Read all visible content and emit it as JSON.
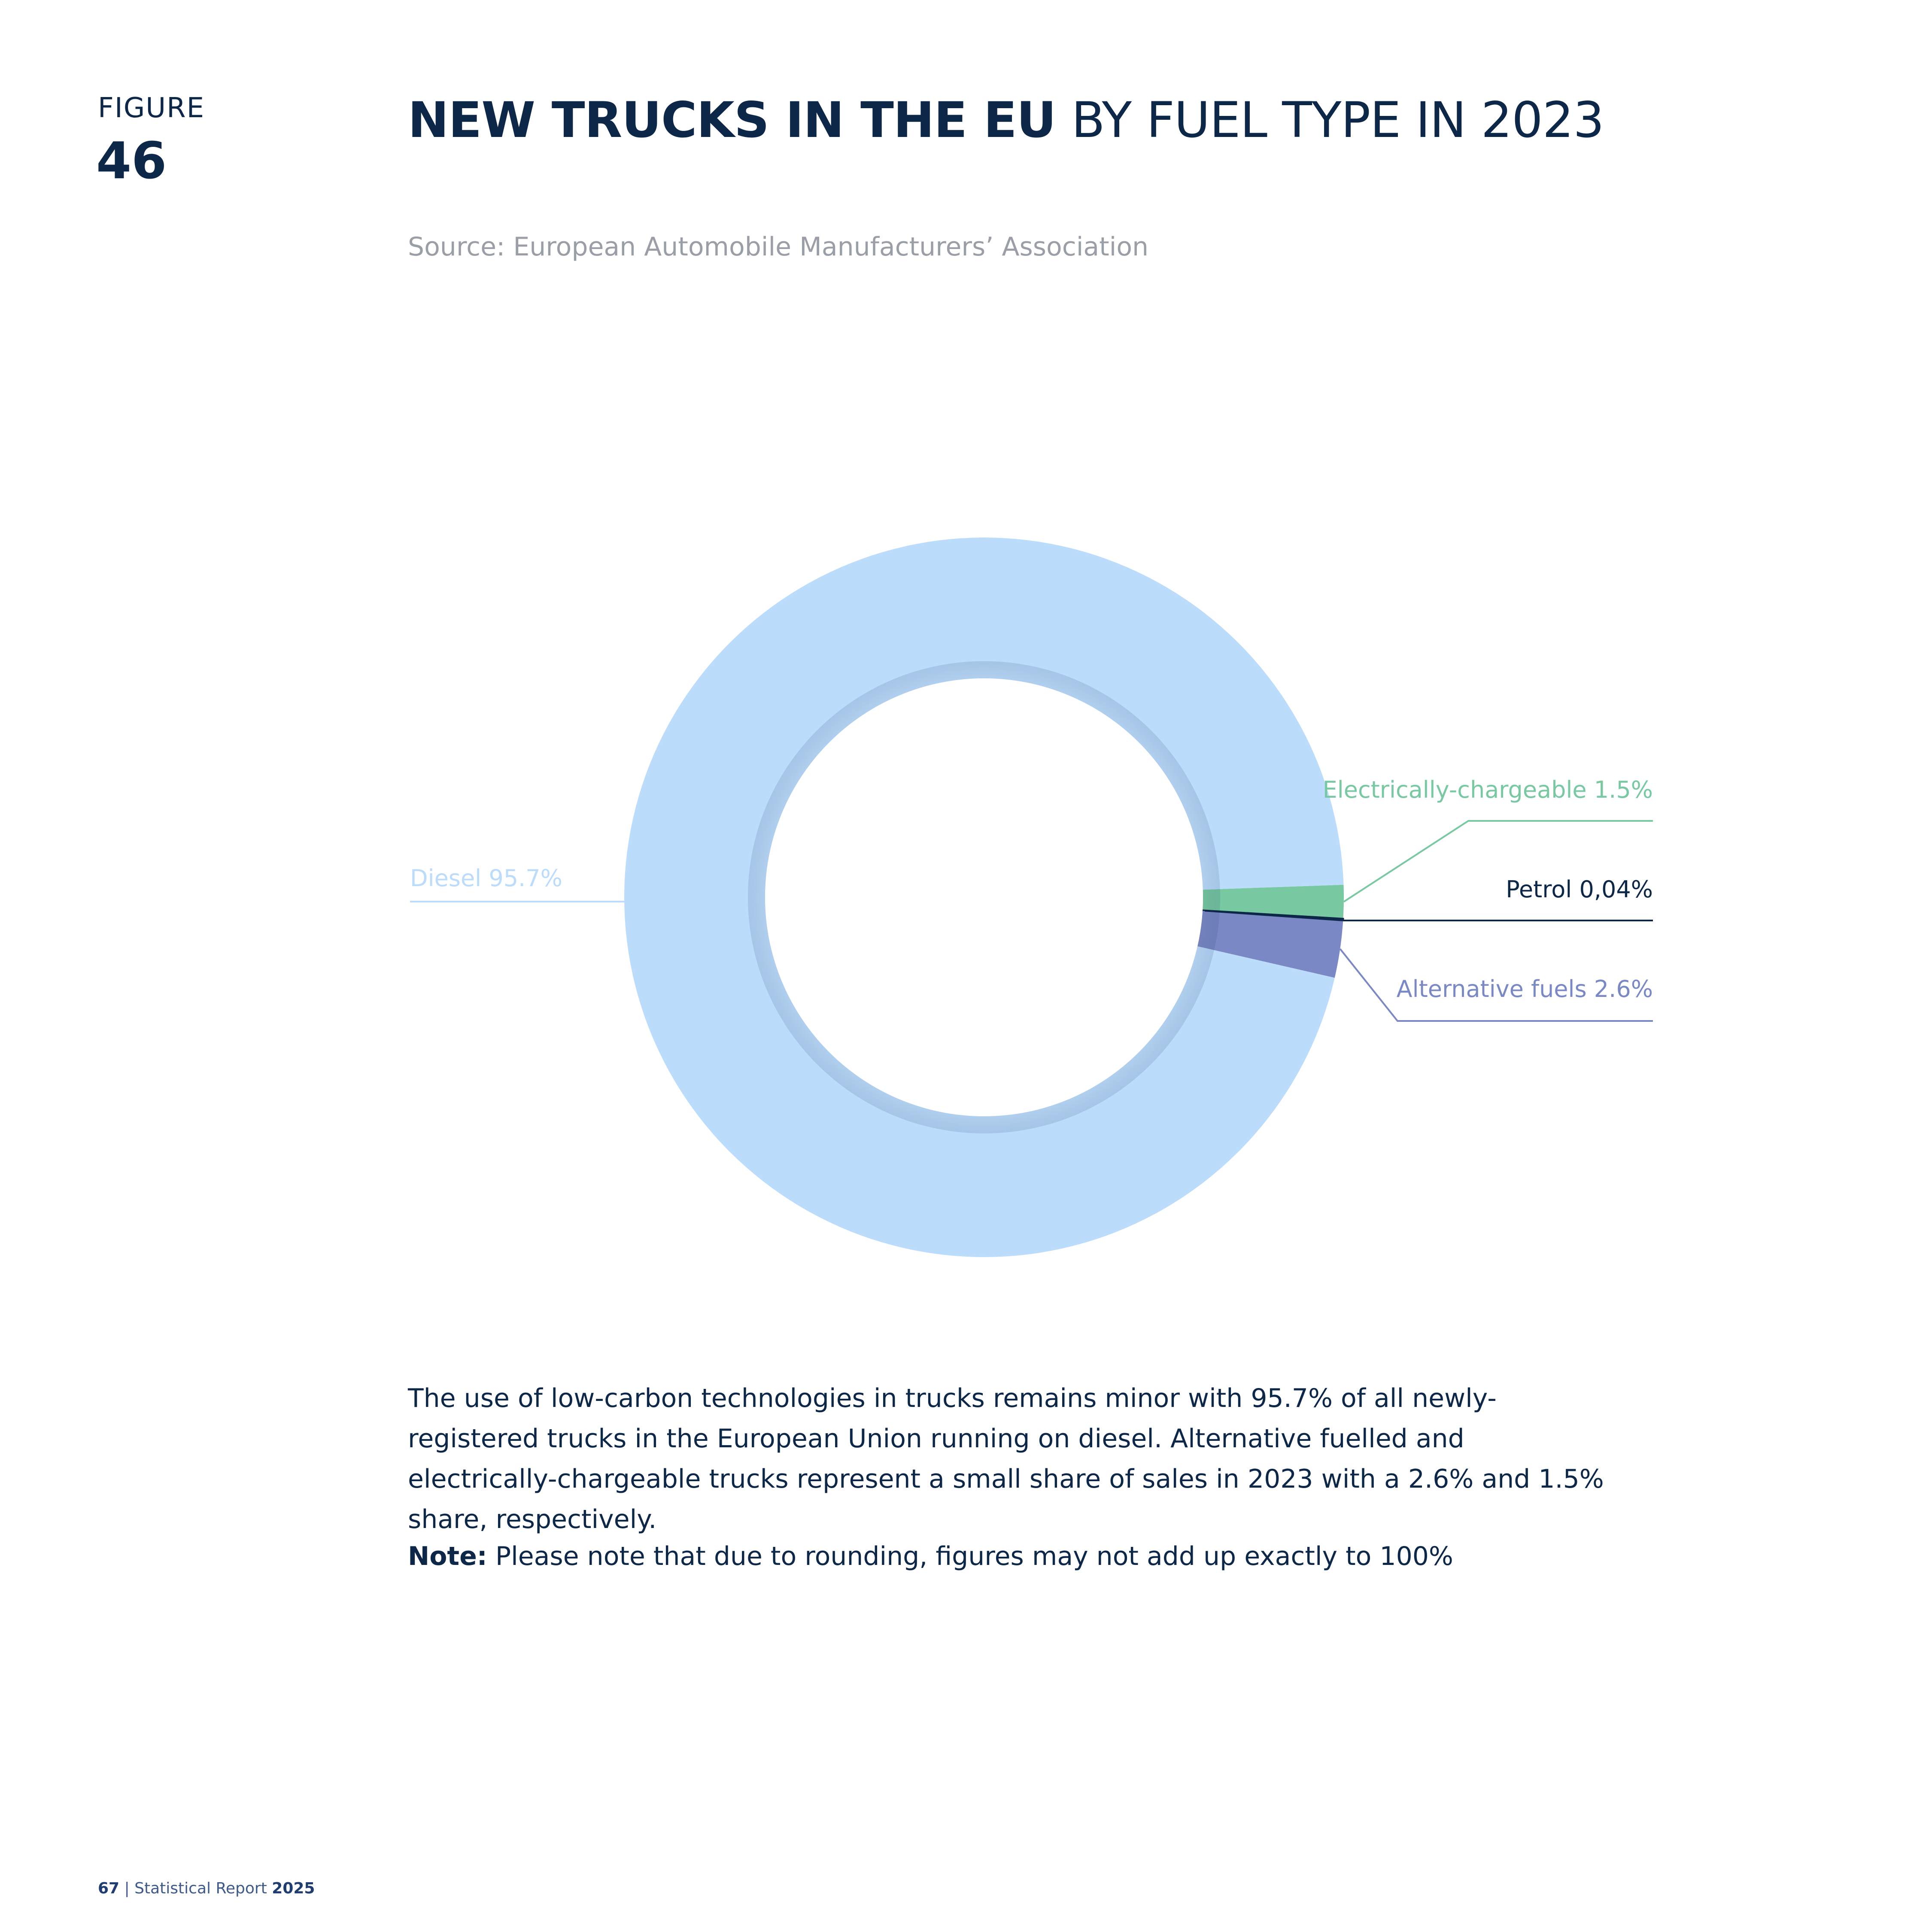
{
  "figure": {
    "label": "FIGURE",
    "number": "46"
  },
  "header": {
    "title_bold": "NEW TRUCKS IN THE EU",
    "title_light": "BY FUEL TYPE IN 2023",
    "source": "Source: European Automobile Manufacturers’ Association"
  },
  "chart_data": {
    "type": "pie",
    "donut": true,
    "title": "NEW TRUCKS IN THE EU BY FUEL TYPE IN 2023",
    "slices": [
      {
        "name": "Electrically-chargeable",
        "value": 1.5,
        "label": "Electrically-chargeable 1.5%",
        "color": "#78c9a1"
      },
      {
        "name": "Petrol",
        "value": 0.04,
        "label": "Petrol 0,04%",
        "color": "#0d2748"
      },
      {
        "name": "Alternative fuels",
        "value": 2.6,
        "label": "Alternative fuels 2.6%",
        "color": "#7a89c6"
      },
      {
        "name": "Diesel",
        "value": 95.7,
        "label": "Diesel 95.7%",
        "color": "#bcdcfc"
      }
    ],
    "legend": "none"
  },
  "text": {
    "body": "The use of low-carbon technologies in trucks remains minor with 95.7% of all newly-registered trucks in the European Union running on diesel. Alternative fuelled and electrically-chargeable trucks represent a small share of sales in 2023 with a 2.6% and 1.5% share, respectively.",
    "note_label": "Note:",
    "note_text": "Please note that due to rounding, figures may not add up exactly to 100%"
  },
  "footer": {
    "page": "67",
    "separator": "|",
    "report": "Statistical Report",
    "year": "2025"
  }
}
